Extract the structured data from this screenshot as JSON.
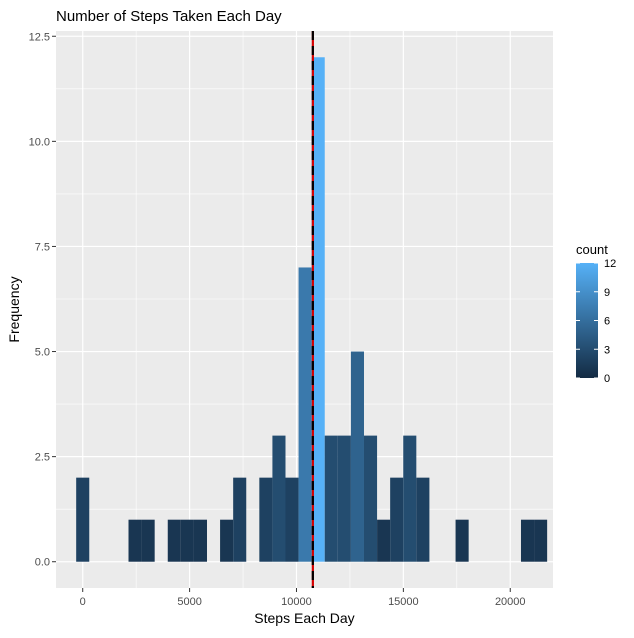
{
  "chart_data": {
    "type": "bar",
    "title": "Number of Steps Taken Each Day",
    "xlabel": "Steps Each Day",
    "ylabel": "Frequency",
    "xlim": [
      -1250,
      22000
    ],
    "ylim": [
      -0.625,
      12.625
    ],
    "x_ticks": [
      0,
      5000,
      10000,
      15000,
      20000
    ],
    "x_tick_labels": [
      "0",
      "5000",
      "10000",
      "15000",
      "20000"
    ],
    "y_ticks": [
      0,
      2.5,
      5,
      7.5,
      10,
      12.5
    ],
    "y_tick_labels": [
      "0.0",
      "2.5",
      "5.0",
      "7.5",
      "10.0",
      "12.5"
    ],
    "grid": true,
    "bin_width": 612,
    "bins": [
      {
        "x": 0,
        "count": 2
      },
      {
        "x": 2448,
        "count": 1
      },
      {
        "x": 3060,
        "count": 1
      },
      {
        "x": 4284,
        "count": 1
      },
      {
        "x": 4896,
        "count": 1
      },
      {
        "x": 5508,
        "count": 1
      },
      {
        "x": 6732,
        "count": 1
      },
      {
        "x": 7344,
        "count": 2
      },
      {
        "x": 8568,
        "count": 2
      },
      {
        "x": 9180,
        "count": 3
      },
      {
        "x": 9792,
        "count": 2
      },
      {
        "x": 10404,
        "count": 7
      },
      {
        "x": 11016,
        "count": 12
      },
      {
        "x": 11628,
        "count": 3
      },
      {
        "x": 12240,
        "count": 3
      },
      {
        "x": 12852,
        "count": 5
      },
      {
        "x": 13464,
        "count": 3
      },
      {
        "x": 14076,
        "count": 1
      },
      {
        "x": 14688,
        "count": 2
      },
      {
        "x": 15300,
        "count": 3
      },
      {
        "x": 15912,
        "count": 2
      },
      {
        "x": 17748,
        "count": 1
      },
      {
        "x": 20808,
        "count": 1
      },
      {
        "x": 21420,
        "count": 1
      }
    ],
    "mean_line": 10766,
    "median_line": 10765,
    "legend": {
      "title": "count",
      "position": "right",
      "breaks": [
        0,
        3,
        6,
        9,
        12
      ],
      "break_labels": [
        "0",
        "3",
        "6",
        "9",
        "12"
      ],
      "low_color": "#132B43",
      "high_color": "#56B1F7"
    },
    "colors": {
      "panel": "#ebebeb",
      "grid_major": "#ffffff",
      "mean_line": "#d40000",
      "median_line": "#000000"
    }
  }
}
